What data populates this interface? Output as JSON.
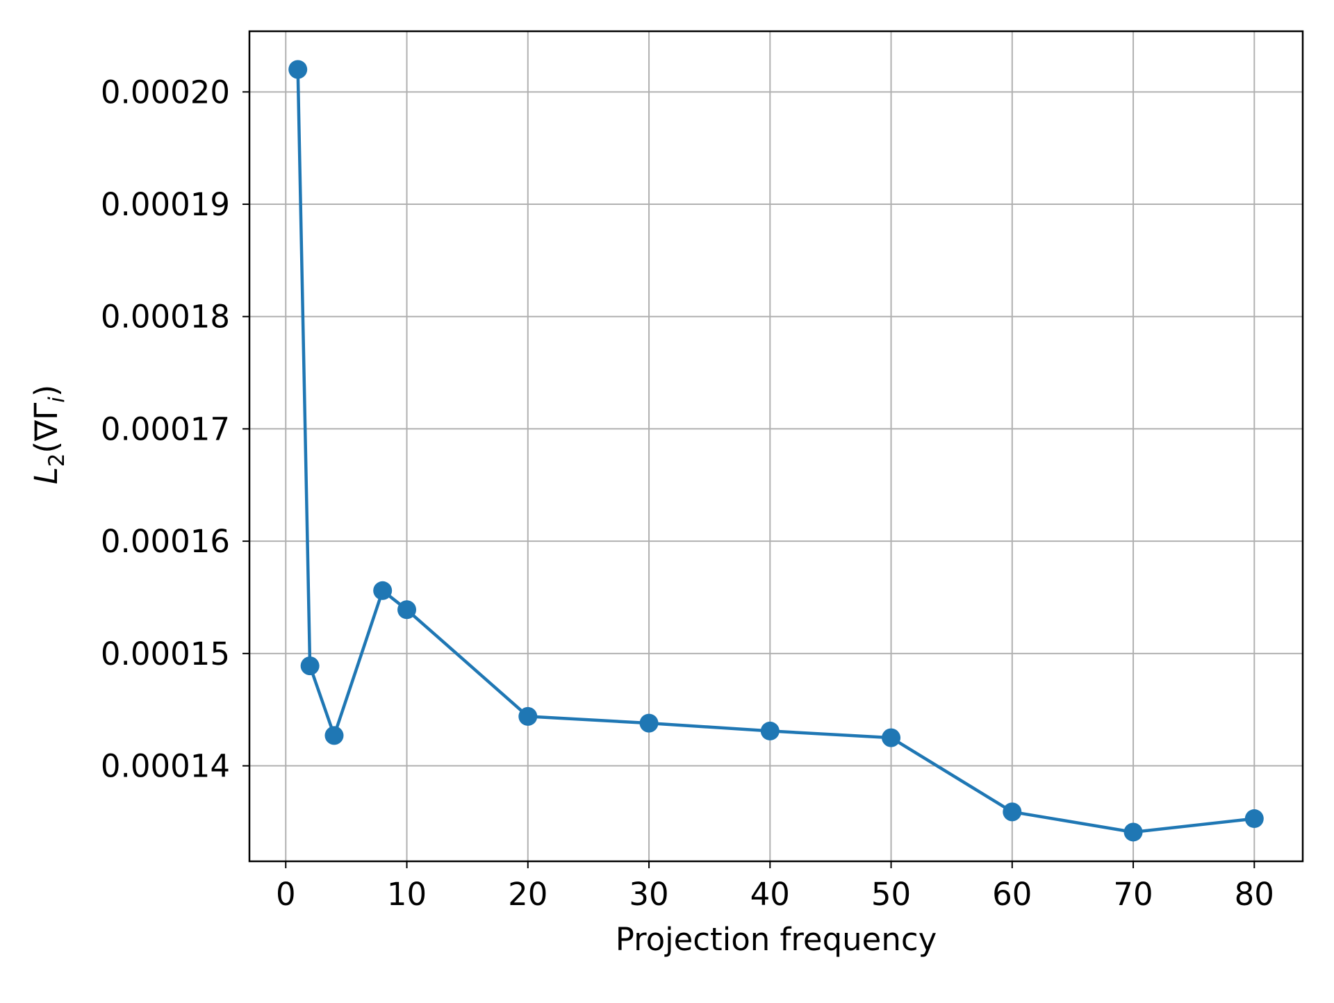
{
  "chart_data": {
    "type": "line",
    "title": "",
    "xlabel": "Projection frequency",
    "ylabel": {
      "base": "L",
      "base_sub": "2",
      "open": "(",
      "nabla": "∇",
      "gamma": "Γ",
      "gamma_sub": "i",
      "close": ")"
    },
    "xlim": [
      -3,
      84
    ],
    "ylim": [
      0.0001315,
      0.0002054
    ],
    "xticks": [
      0,
      10,
      20,
      30,
      40,
      50,
      60,
      70,
      80
    ],
    "xtick_labels": [
      "0",
      "10",
      "20",
      "30",
      "40",
      "50",
      "60",
      "70",
      "80"
    ],
    "yticks": [
      0.00014,
      0.00015,
      0.00016,
      0.00017,
      0.00018,
      0.00019,
      0.0002
    ],
    "ytick_labels": [
      "0.00014",
      "0.00015",
      "0.00016",
      "0.00017",
      "0.00018",
      "0.00019",
      "0.00020"
    ],
    "grid": true,
    "legend": "none",
    "series": [
      {
        "color": "#1f77b4",
        "marker": "circle",
        "x": [
          1,
          2,
          4,
          8,
          10,
          20,
          30,
          40,
          50,
          60,
          70,
          80
        ],
        "y": [
          0.000202,
          0.0001489,
          0.0001427,
          0.0001556,
          0.0001539,
          0.0001444,
          0.0001438,
          0.0001431,
          0.0001425,
          0.0001359,
          0.0001341,
          0.0001353
        ]
      }
    ]
  }
}
